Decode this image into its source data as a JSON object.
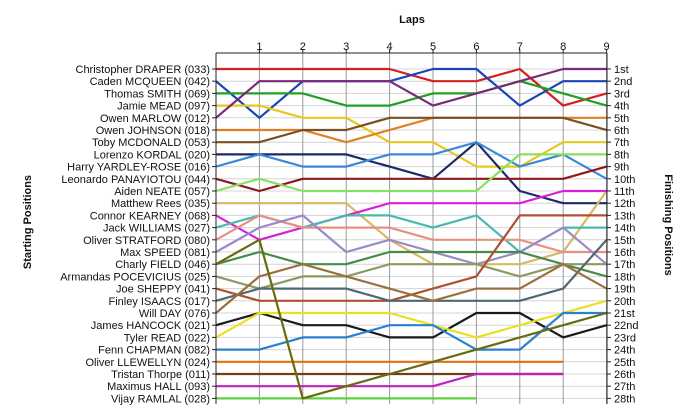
{
  "chart_data": {
    "type": "line",
    "title": "Laps",
    "ylabel_left": "Starting Positions",
    "ylabel_right": "Finishing Positions",
    "x": [
      "1",
      "2",
      "3",
      "4",
      "5",
      "6",
      "7",
      "8",
      "9"
    ],
    "grid": true,
    "start_labels": [
      "Christopher DRAPER (033)",
      "Caden MCQUEEN (042)",
      "Thomas SMITH (069)",
      "Jamie MEAD (097)",
      "Owen MARLOW (012)",
      "Owen JOHNSON (018)",
      "Toby MCDONALD (053)",
      "Lorenzo KORDAL (020)",
      "Harry YARDLEY-ROSE (016)",
      "Leonardo PANAYIOTOU (044)",
      "Aiden NEATE (057)",
      "Matthew Rees (035)",
      "Connor KEARNEY (068)",
      "Jack WILLIAMS (027)",
      "Oliver STRATFORD (080)",
      "Max SPEED (081)",
      "Charly FIELD (046)",
      "Armandas POCEVICIUS (025)",
      "Joe SHEPPY (041)",
      "Finley ISAACS (017)",
      "Will DAY (076)",
      "James HANCOCK (021)",
      "Tyler READ (022)",
      "Fenn CHAPMAN (082)",
      "Oliver LLEWELLYN (024)",
      "Tristan Thorpe (011)",
      "Maximus HALL (093)",
      "Vijay RAMLAL (028)"
    ],
    "finish_labels": [
      "1st",
      "2nd",
      "3rd",
      "4th",
      "5th",
      "6th",
      "7th",
      "8th",
      "9th",
      "10th",
      "11th",
      "12th",
      "13th",
      "14th",
      "15th",
      "16th",
      "17th",
      "18th",
      "19th",
      "20th",
      "21st",
      "22nd",
      "23rd",
      "24th",
      "25th",
      "26th",
      "27th",
      "28th"
    ],
    "series": [
      {
        "start": 1,
        "color": "#d42020",
        "positions": [
          1,
          1,
          1,
          1,
          2,
          2,
          1,
          4,
          3
        ]
      },
      {
        "start": 2,
        "color": "#1a44b8",
        "positions": [
          5,
          2,
          2,
          2,
          1,
          1,
          4,
          2,
          2
        ]
      },
      {
        "start": 3,
        "color": "#22a022",
        "positions": [
          3,
          3,
          4,
          4,
          3,
          3,
          2,
          3,
          4
        ]
      },
      {
        "start": 4,
        "color": "#e8c820",
        "positions": [
          4,
          5,
          5,
          7,
          7,
          9,
          9,
          7,
          7
        ]
      },
      {
        "start": 5,
        "color": "#7a2a7a",
        "positions": [
          2,
          2,
          2,
          2,
          4,
          3,
          2,
          1,
          1
        ]
      },
      {
        "start": 6,
        "color": "#e08020",
        "positions": [
          6,
          6,
          7,
          6,
          5,
          5,
          5,
          5,
          5
        ]
      },
      {
        "start": 7,
        "color": "#7a5020",
        "positions": [
          7,
          6,
          6,
          5,
          5,
          5,
          5,
          5,
          6
        ]
      },
      {
        "start": 8,
        "color": "#1a2a6a",
        "positions": [
          8,
          8,
          8,
          9,
          10,
          7,
          11,
          12,
          12
        ]
      },
      {
        "start": 9,
        "color": "#3a8ad8",
        "positions": [
          8,
          9,
          9,
          8,
          8,
          7,
          9,
          8,
          10
        ]
      },
      {
        "start": 10,
        "color": "#8b1a1a",
        "positions": [
          11,
          10,
          10,
          10,
          10,
          10,
          10,
          10,
          9
        ]
      },
      {
        "start": 11,
        "color": "#88e060",
        "positions": [
          10,
          11,
          11,
          11,
          11,
          11,
          8,
          8,
          8
        ]
      },
      {
        "start": 12,
        "color": "#d8b860",
        "positions": [
          12,
          12,
          12,
          15,
          17,
          17,
          17,
          16,
          11
        ]
      },
      {
        "start": 13,
        "color": "#d820d8",
        "positions": [
          15,
          14,
          13,
          12,
          12,
          12,
          12,
          11,
          11
        ]
      },
      {
        "start": 14,
        "color": "#4ab8b0",
        "positions": [
          13,
          14,
          13,
          13,
          14,
          13,
          16,
          14,
          14
        ]
      },
      {
        "start": 15,
        "color": "#e89080",
        "positions": [
          13,
          14,
          14,
          14,
          15,
          15,
          15,
          16,
          16
        ]
      },
      {
        "start": 16,
        "color": "#9a8ac8",
        "positions": [
          14,
          13,
          16,
          15,
          16,
          17,
          16,
          14,
          17
        ]
      },
      {
        "start": 17,
        "color": "#4a8a4a",
        "positions": [
          16,
          17,
          17,
          16,
          16,
          16,
          16,
          17,
          18
        ]
      },
      {
        "start": 18,
        "color": "#8a9a60",
        "positions": [
          19,
          18,
          18,
          17,
          17,
          17,
          18,
          17,
          17
        ]
      },
      {
        "start": 19,
        "color": "#b05030",
        "positions": [
          20,
          20,
          20,
          20,
          19,
          18,
          13,
          13,
          13
        ]
      },
      {
        "start": 20,
        "color": "#506870",
        "positions": [
          19,
          19,
          19,
          20,
          20,
          20,
          20,
          19,
          15
        ]
      },
      {
        "start": 21,
        "color": "#9a7040",
        "positions": [
          18,
          17,
          18,
          19,
          20,
          19,
          19,
          17,
          19
        ]
      },
      {
        "start": 22,
        "color": "#1a1a1a",
        "positions": [
          21,
          22,
          22,
          23,
          23,
          21,
          21,
          23,
          22
        ]
      },
      {
        "start": 23,
        "color": "#e8e020",
        "positions": [
          21,
          21,
          21,
          21,
          22,
          23,
          22,
          21,
          20
        ]
      },
      {
        "start": 24,
        "color": "#2a80d0",
        "positions": [
          24,
          23,
          23,
          22,
          22,
          24,
          24,
          21,
          21
        ]
      },
      {
        "start": 25,
        "color": "#e07010",
        "positions": [
          25,
          25,
          25,
          25,
          25,
          25,
          25,
          25,
          null
        ]
      },
      {
        "start": 26,
        "color": "#70401a",
        "positions": [
          26,
          26,
          26,
          26,
          26,
          26,
          26,
          26,
          null
        ]
      },
      {
        "start": 27,
        "color": "#c020c0",
        "positions": [
          27,
          27,
          27,
          27,
          27,
          26,
          26,
          26,
          null
        ]
      },
      {
        "start": 28,
        "color": "#60d040",
        "positions": [
          28,
          28,
          28,
          28,
          28,
          28,
          null,
          null,
          null
        ]
      },
      {
        "start": 17,
        "color": "#6a6a10",
        "positions": [
          15,
          28,
          27,
          26,
          25,
          24,
          23,
          22,
          21
        ]
      }
    ]
  }
}
